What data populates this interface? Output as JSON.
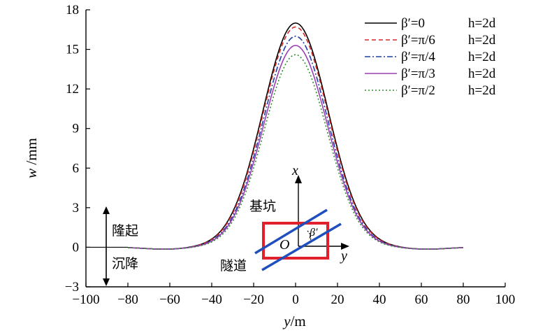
{
  "chart_data": {
    "type": "line",
    "xlabel": {
      "var": "y",
      "unit": "/m"
    },
    "ylabel": {
      "var": "w",
      "unit": " /mm"
    },
    "xlim": [
      -100,
      100
    ],
    "ylim": [
      -3,
      18
    ],
    "xticks": [
      -100,
      -80,
      -60,
      -40,
      -20,
      0,
      20,
      40,
      60,
      80,
      100
    ],
    "yticks": [
      -3,
      0,
      3,
      6,
      9,
      12,
      15,
      18
    ],
    "grid": false,
    "legend_position": "top-right",
    "x_range": [
      -80,
      80
    ],
    "series": [
      {
        "name_beta": "β′=0",
        "name_h": "h=2d",
        "peak": 17.0,
        "sigma": 15.6,
        "color": "#000000",
        "dash": ""
      },
      {
        "name_beta": "β′=π/6",
        "name_h": "h=2d",
        "peak": 16.7,
        "sigma": 15.5,
        "color": "#d62728",
        "dash": "6,4"
      },
      {
        "name_beta": "β′=π/4",
        "name_h": "h=2d",
        "peak": 16.0,
        "sigma": 15.3,
        "color": "#1f3fa8",
        "dash": "8,3,2,3"
      },
      {
        "name_beta": "β′=π/3",
        "name_h": "h=2d",
        "peak": 15.3,
        "sigma": 15.2,
        "color": "#9b3fb5",
        "dash": ""
      },
      {
        "name_beta": "β′=π/2",
        "name_h": "h=2d",
        "peak": 14.6,
        "sigma": 15.0,
        "color": "#2e8b2e",
        "dash": "2,3"
      }
    ],
    "annotations": {
      "uplift": "隆起",
      "settlement": "沉降",
      "pit": "基坑",
      "tunnel": "隧道",
      "inset_x": "x",
      "inset_y": "y",
      "inset_origin": "O",
      "inset_angle": "β′"
    }
  }
}
